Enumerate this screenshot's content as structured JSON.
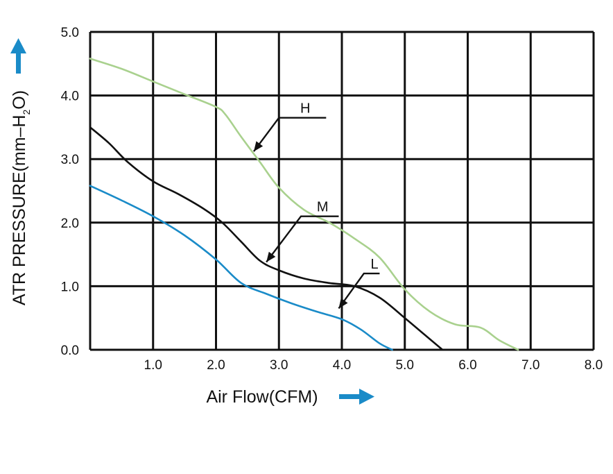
{
  "chart_data": {
    "type": "line",
    "xlabel": "Air Flow(CFM)",
    "ylabel": {
      "main": "ATR PRESSURE(mm–H",
      "sub": "2",
      "end": "O)"
    },
    "xlim": [
      0,
      8
    ],
    "ylim": [
      0,
      5
    ],
    "x_ticks": [
      "1.0",
      "2.0",
      "3.0",
      "4.0",
      "5.0",
      "6.0",
      "7.0",
      "8.0"
    ],
    "y_ticks": [
      "0.0",
      "1.0",
      "2.0",
      "3.0",
      "4.0",
      "5.0"
    ],
    "grid": true,
    "series": [
      {
        "name": "H",
        "color": "#a9d18e",
        "x": [
          0,
          0.5,
          1.0,
          1.5,
          2.0,
          2.15,
          2.4,
          2.7,
          3.0,
          3.4,
          3.8,
          4.2,
          4.6,
          5.0,
          5.4,
          5.8,
          6.2,
          6.5,
          6.8
        ],
        "y": [
          4.58,
          4.42,
          4.22,
          4.02,
          3.82,
          3.7,
          3.35,
          2.95,
          2.55,
          2.2,
          2.0,
          1.75,
          1.45,
          0.95,
          0.6,
          0.4,
          0.35,
          0.15,
          0.0
        ]
      },
      {
        "name": "M",
        "color": "#111111",
        "x": [
          0,
          0.3,
          0.6,
          1.0,
          1.4,
          1.8,
          2.1,
          2.4,
          2.7,
          3.0,
          3.4,
          3.8,
          4.2,
          4.6,
          5.0,
          5.3,
          5.6
        ],
        "y": [
          3.5,
          3.25,
          2.95,
          2.65,
          2.45,
          2.22,
          2.0,
          1.7,
          1.4,
          1.25,
          1.12,
          1.05,
          1.0,
          0.82,
          0.5,
          0.25,
          0.0
        ]
      },
      {
        "name": "L",
        "color": "#1a8bc8",
        "x": [
          0,
          0.5,
          1.0,
          1.5,
          2.0,
          2.4,
          2.8,
          3.2,
          3.6,
          4.0,
          4.3,
          4.6,
          4.8
        ],
        "y": [
          2.58,
          2.35,
          2.1,
          1.8,
          1.42,
          1.05,
          0.88,
          0.73,
          0.6,
          0.48,
          0.32,
          0.1,
          0.0
        ]
      }
    ],
    "annotations": [
      {
        "label": "H",
        "line": [
          [
            3.0,
            3.65
          ],
          [
            3.75,
            3.65
          ]
        ],
        "arrow_to": [
          2.6,
          3.12
        ]
      },
      {
        "label": "M",
        "line": [
          [
            3.35,
            2.1
          ],
          [
            3.95,
            2.1
          ]
        ],
        "arrow_to": [
          2.8,
          1.38
        ]
      },
      {
        "label": "L",
        "line": [
          [
            4.35,
            1.2
          ],
          [
            4.6,
            1.2
          ]
        ],
        "arrow_to": [
          3.95,
          0.65
        ]
      }
    ],
    "arrow_color": "#1a8bc8"
  }
}
